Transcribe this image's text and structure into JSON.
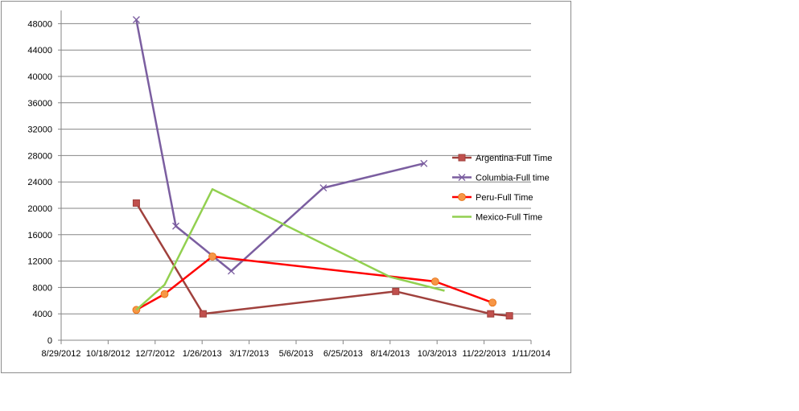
{
  "chart_data": {
    "type": "line",
    "title": "",
    "xlabel": "",
    "ylabel": "",
    "x_axis_type": "date",
    "xlim": [
      "2012-08-29",
      "2014-01-11"
    ],
    "ylim": [
      0,
      50000
    ],
    "x_ticks": [
      "8/29/2012",
      "10/18/2012",
      "12/7/2012",
      "1/26/2013",
      "3/17/2013",
      "5/6/2013",
      "6/25/2013",
      "8/14/2013",
      "10/3/2013",
      "11/22/2013",
      "1/11/2014"
    ],
    "y_ticks": [
      0,
      4000,
      8000,
      12000,
      16000,
      20000,
      24000,
      28000,
      32000,
      36000,
      40000,
      44000,
      48000
    ],
    "grid": "horizontal",
    "legend_position": "right",
    "series": [
      {
        "name": "Argentina-Full Time",
        "color": "#A0413D",
        "marker": "square",
        "points": [
          {
            "x": "2012-11-17",
            "y": 20800
          },
          {
            "x": "2013-01-27",
            "y": 4000
          },
          {
            "x": "2013-08-20",
            "y": 7400
          },
          {
            "x": "2013-11-29",
            "y": 4000
          },
          {
            "x": "2013-12-19",
            "y": 3700
          }
        ]
      },
      {
        "name": "Columbia-Full time",
        "color": "#7B5EA0",
        "marker": "x",
        "points": [
          {
            "x": "2012-11-17",
            "y": 48600
          },
          {
            "x": "2012-12-29",
            "y": 17300
          },
          {
            "x": "2013-02-26",
            "y": 10500
          },
          {
            "x": "2013-06-04",
            "y": 23100
          },
          {
            "x": "2013-09-19",
            "y": 26800
          }
        ]
      },
      {
        "name": "Peru-Full Time",
        "color": "#FF0000",
        "marker": "circle",
        "points": [
          {
            "x": "2012-11-17",
            "y": 4600
          },
          {
            "x": "2012-12-17",
            "y": 7000
          },
          {
            "x": "2013-02-06",
            "y": 12700
          },
          {
            "x": "2013-10-01",
            "y": 8900
          },
          {
            "x": "2013-12-01",
            "y": 5700
          }
        ]
      },
      {
        "name": "Mexico-Full Time",
        "color": "#92D050",
        "marker": "none",
        "points": [
          {
            "x": "2012-11-17",
            "y": 4600
          },
          {
            "x": "2012-12-17",
            "y": 8400
          },
          {
            "x": "2013-02-06",
            "y": 22900
          },
          {
            "x": "2013-08-14",
            "y": 9600
          },
          {
            "x": "2013-10-11",
            "y": 7500
          }
        ]
      }
    ]
  }
}
